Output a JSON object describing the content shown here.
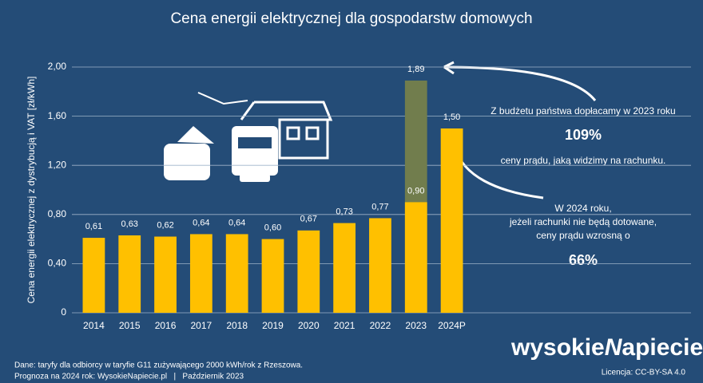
{
  "chart_data": {
    "type": "bar",
    "title": "Cena energii elektrycznej dla gospodarstw domowych",
    "y_label": "Cena energii elektrycznej z dystrybucją i VAT [zł/kWh]",
    "categories": [
      "2014",
      "2015",
      "2016",
      "2017",
      "2018",
      "2019",
      "2020",
      "2021",
      "2022",
      "2023",
      "2024P"
    ],
    "series": [
      {
        "color": "#717d4d",
        "values": [
          null,
          null,
          null,
          null,
          null,
          null,
          null,
          null,
          null,
          1.89,
          null
        ],
        "value_labels": [
          null,
          null,
          null,
          null,
          null,
          null,
          null,
          null,
          null,
          "1,89",
          null
        ]
      },
      {
        "color": "#ffc000",
        "values": [
          0.61,
          0.63,
          0.62,
          0.64,
          0.64,
          0.6,
          0.67,
          0.73,
          0.77,
          0.9,
          1.5
        ],
        "value_labels": [
          "0,61",
          "0,63",
          "0,62",
          "0,64",
          "0,64",
          "0,60",
          "0,67",
          "0,73",
          "0,77",
          "0,90",
          "1,50"
        ]
      }
    ],
    "ylim": [
      0,
      2.0
    ],
    "yticks": [
      0,
      {
        "value": 0.4,
        "label": "0,40"
      },
      {
        "value": 0.8,
        "label": "0,80"
      },
      {
        "value": 1.2,
        "label": "1,20"
      },
      {
        "value": 1.6,
        "label": "1,60"
      },
      {
        "value": 2.0,
        "label": "2,00"
      }
    ],
    "grid": true,
    "annotations": [
      "Z budżetu państwa dopłacamy w 2023 roku",
      "109%",
      "ceny prądu, jaką widzimy na rachunku.",
      "W 2024 roku,",
      "jeżeli rachunki nie będą dotowane,",
      "ceny prądu wzrosną o",
      "66%"
    ]
  },
  "footer": {
    "source": "Dane: taryfy dla odbiorcy w taryfie G11 zużywającego 2000 kWh/rok z Rzeszowa.",
    "forecast": "Prognoza na 2024 rok: WysokieNapiecie.pl   |   Październik 2023",
    "logo": [
      "wysokie",
      "N",
      "apiecie.pl"
    ],
    "license": "Licencja: CC-BY-SA 4.0"
  }
}
